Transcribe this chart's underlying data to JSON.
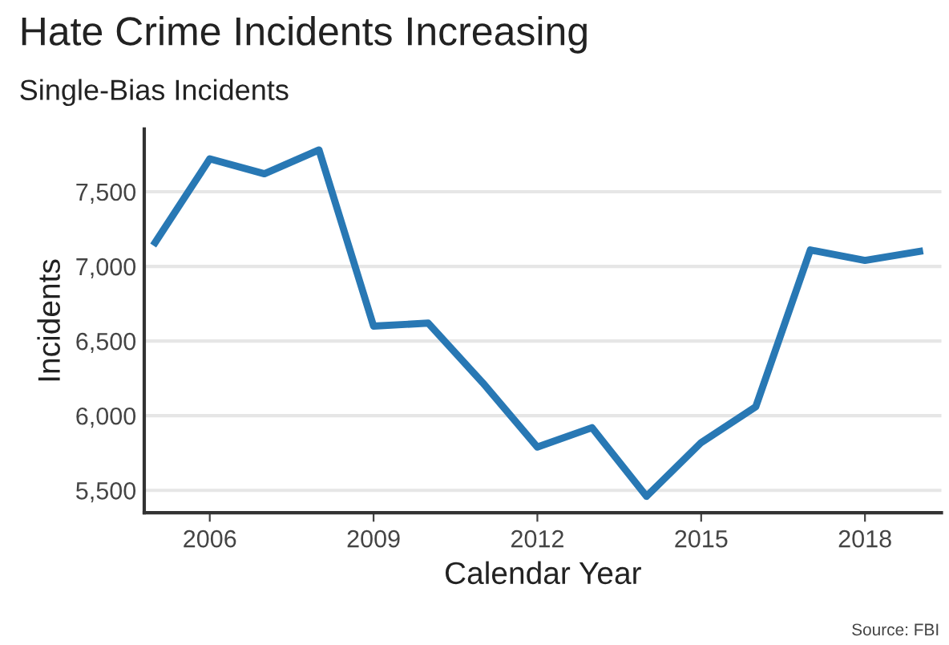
{
  "chart_data": {
    "type": "line",
    "title": "Hate Crime Incidents Increasing",
    "subtitle": "Single-Bias Incidents",
    "xlabel": "Calendar Year",
    "ylabel": "Incidents",
    "annotations": [
      "Source: FBI"
    ],
    "x": [
      2005,
      2006,
      2007,
      2008,
      2009,
      2010,
      2011,
      2012,
      2013,
      2014,
      2015,
      2016,
      2017,
      2018,
      2019
    ],
    "series": [
      {
        "color": "#2878b4",
        "values": [
          7160,
          7720,
          7620,
          7780,
          6600,
          6620,
          6220,
          5790,
          5920,
          5460,
          5820,
          6060,
          7110,
          7040,
          7100
        ]
      }
    ],
    "xlim": [
      2004.8,
      2019.4
    ],
    "xticks": [
      2006,
      2009,
      2012,
      2015,
      2018
    ],
    "ylim": [
      5350,
      7920
    ],
    "yticks": [
      {
        "value": 5500,
        "label": "5,500"
      },
      {
        "value": 6000,
        "label": "6,000"
      },
      {
        "value": 6500,
        "label": "6,500"
      },
      {
        "value": 7000,
        "label": "7,000"
      },
      {
        "value": 7500,
        "label": "7,500"
      }
    ],
    "grid": "y",
    "marker": "none",
    "line_style": "solid"
  }
}
